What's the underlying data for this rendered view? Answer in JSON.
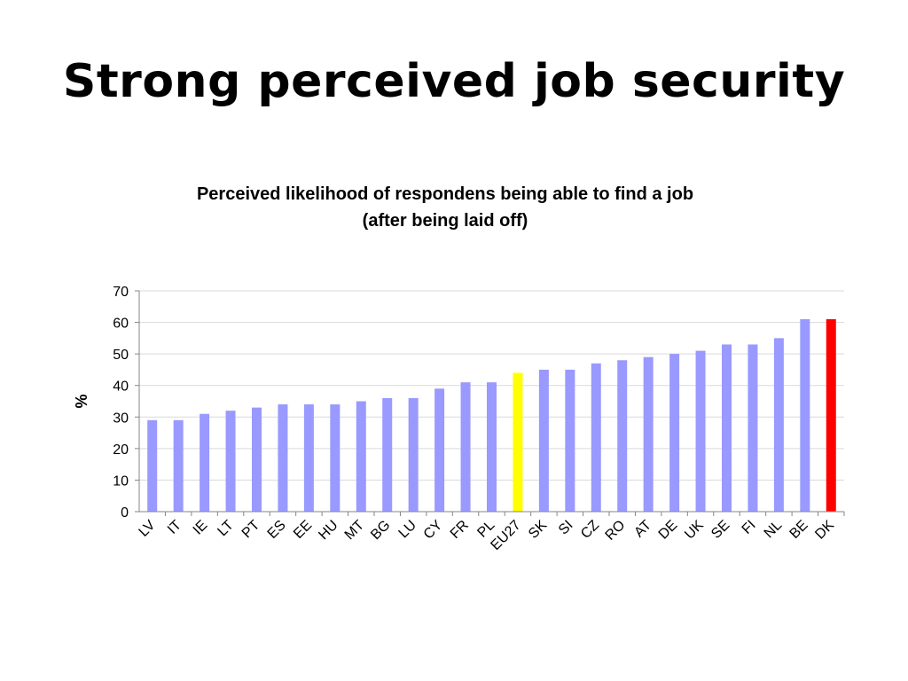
{
  "slide": {
    "title": "Strong perceived job security"
  },
  "chart_data": {
    "type": "bar",
    "title_line1": "Perceived likelihood of respondens being able to find a job",
    "title_line2": "(after being laid off)",
    "xlabel": "",
    "ylabel": "%",
    "ylim": [
      0,
      70
    ],
    "yticks": [
      0,
      10,
      20,
      30,
      40,
      50,
      60,
      70
    ],
    "grid": true,
    "legend": "none",
    "categories": [
      "LV",
      "IT",
      "IE",
      "LT",
      "PT",
      "ES",
      "EE",
      "HU",
      "MT",
      "BG",
      "LU",
      "CY",
      "FR",
      "PL",
      "EU27",
      "SK",
      "SI",
      "CZ",
      "RO",
      "AT",
      "DE",
      "UK",
      "SE",
      "FI",
      "NL",
      "BE",
      "DK"
    ],
    "values": [
      29,
      29,
      31,
      32,
      33,
      34,
      34,
      34,
      35,
      36,
      36,
      39,
      41,
      41,
      44,
      45,
      45,
      47,
      48,
      49,
      50,
      51,
      53,
      53,
      55,
      61,
      61
    ],
    "colors": {
      "default": "#9999ff",
      "EU27": "#ffff00",
      "DK": "#ff0000",
      "grid": "#d9d9d9",
      "axis": "#868686"
    }
  }
}
